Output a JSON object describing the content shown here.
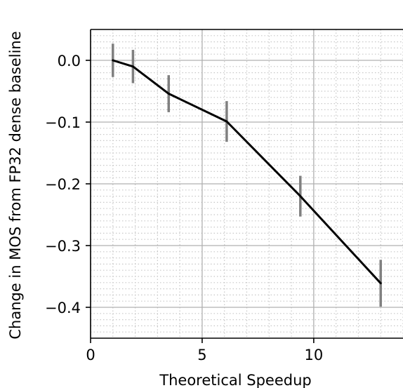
{
  "chart_data": {
    "type": "line",
    "xlabel": "Theoretical Speedup",
    "ylabel": "Change in MOS from FP32 dense baseline",
    "xlim": [
      0,
      14
    ],
    "ylim": [
      -0.45,
      0.05
    ],
    "x_ticks": [
      0,
      5,
      10
    ],
    "x_tick_labels": [
      "0",
      "5",
      "10"
    ],
    "y_ticks": [
      0.0,
      -0.1,
      -0.2,
      -0.3,
      -0.4
    ],
    "y_tick_labels": [
      "0.0",
      "−0.1",
      "−0.2",
      "−0.3",
      "−0.4"
    ],
    "grid": true,
    "minor_grid": true,
    "line_color": "#000000",
    "errorbar_color": "#808080",
    "series": [
      {
        "x": [
          1.0,
          1.9,
          3.5,
          6.1,
          9.4,
          13.0
        ],
        "y": [
          0.0,
          -0.01,
          -0.054,
          -0.099,
          -0.22,
          -0.361
        ],
        "yerr": [
          0.027,
          0.027,
          0.03,
          0.033,
          0.033,
          0.038
        ]
      }
    ]
  }
}
